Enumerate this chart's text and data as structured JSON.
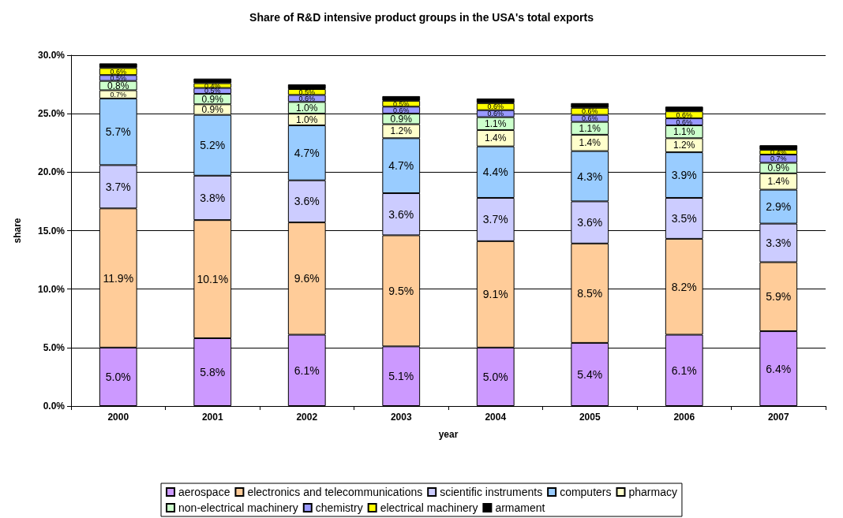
{
  "chart_data": {
    "type": "bar",
    "stacked": true,
    "title": "Share of R&D intensive product groups in the USA's total exports",
    "xlabel": "year",
    "ylabel": "share",
    "categories": [
      "2000",
      "2001",
      "2002",
      "2003",
      "2004",
      "2005",
      "2006",
      "2007"
    ],
    "ylim": [
      0,
      30
    ],
    "yticks": [
      {
        "value": 0,
        "label": "0.0%"
      },
      {
        "value": 5,
        "label": "5.0%"
      },
      {
        "value": 10,
        "label": "10.0%"
      },
      {
        "value": 15,
        "label": "15.0%"
      },
      {
        "value": 20,
        "label": "20.0%"
      },
      {
        "value": 25,
        "label": "25.0%"
      },
      {
        "value": 30,
        "label": "30.0%"
      }
    ],
    "grid": "y",
    "legend": "bottom",
    "series": [
      {
        "name": "aerospace",
        "color": "#cc99ff",
        "values": [
          5.0,
          5.8,
          6.1,
          5.1,
          5.0,
          5.4,
          6.1,
          6.4
        ],
        "value_labels": [
          "5.0%",
          "5.8%",
          "6.1%",
          "5.1%",
          "5.0%",
          "5.4%",
          "6.1%",
          "6.4%"
        ]
      },
      {
        "name": "electronics and telecommunications",
        "color": "#ffcc99",
        "values": [
          11.9,
          10.1,
          9.6,
          9.5,
          9.1,
          8.5,
          8.2,
          5.9
        ],
        "value_labels": [
          "11.9%",
          "10.1%",
          "9.6%",
          "9.5%",
          "9.1%",
          "8.5%",
          "8.2%",
          "5.9%"
        ]
      },
      {
        "name": "scientific instruments",
        "color": "#ccccff",
        "values": [
          3.7,
          3.8,
          3.6,
          3.6,
          3.7,
          3.6,
          3.5,
          3.3
        ],
        "value_labels": [
          "3.7%",
          "3.8%",
          "3.6%",
          "3.6%",
          "3.7%",
          "3.6%",
          "3.5%",
          "3.3%"
        ]
      },
      {
        "name": "computers",
        "color": "#99ccff",
        "values": [
          5.7,
          5.2,
          4.7,
          4.7,
          4.4,
          4.3,
          3.9,
          2.9
        ],
        "value_labels": [
          "5.7%",
          "5.2%",
          "4.7%",
          "4.7%",
          "4.4%",
          "4.3%",
          "3.9%",
          "2.9%"
        ]
      },
      {
        "name": "pharmacy",
        "color": "#ffffcc",
        "values": [
          0.7,
          0.9,
          1.0,
          1.2,
          1.4,
          1.4,
          1.2,
          1.4
        ],
        "value_labels": [
          "0.7%",
          "0.9%",
          "1.0%",
          "1.2%",
          "1.4%",
          "1.4%",
          "1.2%",
          "1.4%"
        ]
      },
      {
        "name": "non-electrical machinery",
        "color": "#ccffcc",
        "values": [
          0.8,
          0.9,
          1.0,
          0.9,
          1.1,
          1.1,
          1.1,
          0.9
        ],
        "value_labels": [
          "0.8%",
          "0.9%",
          "1.0%",
          "0.9%",
          "1.1%",
          "1.1%",
          "1.1%",
          "0.9%"
        ]
      },
      {
        "name": "chemistry",
        "color": "#9999ff",
        "values": [
          0.5,
          0.5,
          0.6,
          0.6,
          0.6,
          0.6,
          0.6,
          0.7
        ],
        "value_labels": [
          "0.5%",
          "0.5%",
          "0.6%",
          "0.6%",
          "0.6%",
          "0.6%",
          "0.6%",
          "0.7%"
        ]
      },
      {
        "name": "electrical machinery",
        "color": "#ffff00",
        "values": [
          0.6,
          0.4,
          0.5,
          0.5,
          0.6,
          0.6,
          0.6,
          0.4
        ],
        "value_labels": [
          "0.6%",
          "0.4%",
          "0.5%",
          "0.5%",
          "0.6%",
          "0.6%",
          "0.6%",
          "0.4%"
        ]
      },
      {
        "name": "armament",
        "color": "#000000",
        "values": [
          0.4,
          0.4,
          0.4,
          0.4,
          0.4,
          0.4,
          0.4,
          0.4
        ]
      }
    ]
  }
}
